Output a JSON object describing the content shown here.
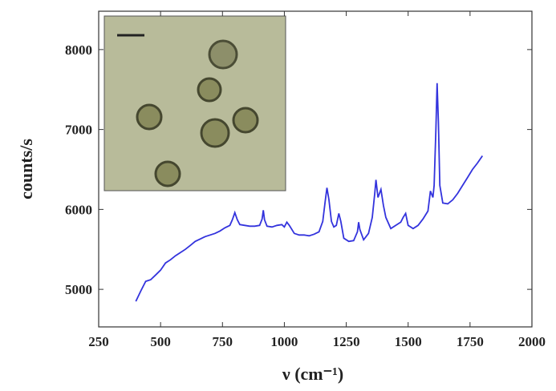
{
  "chart_data": {
    "type": "line",
    "x_label": "ν (cm⁻¹)",
    "y_label": "counts/s",
    "xlim": [
      250,
      2000
    ],
    "ylim": [
      4530,
      8480
    ],
    "xticks": [
      250,
      500,
      750,
      1000,
      1250,
      1500,
      1750,
      2000
    ],
    "yticks": [
      5000,
      6000,
      7000,
      8000
    ],
    "x": [
      400,
      420,
      440,
      460,
      480,
      500,
      520,
      540,
      560,
      580,
      600,
      620,
      640,
      660,
      680,
      700,
      720,
      740,
      760,
      780,
      790,
      800,
      810,
      820,
      840,
      860,
      880,
      900,
      910,
      915,
      920,
      930,
      950,
      970,
      990,
      1000,
      1010,
      1020,
      1040,
      1060,
      1080,
      1100,
      1120,
      1140,
      1155,
      1165,
      1172,
      1180,
      1190,
      1200,
      1210,
      1220,
      1228,
      1240,
      1260,
      1280,
      1295,
      1300,
      1305,
      1320,
      1340,
      1355,
      1365,
      1370,
      1378,
      1390,
      1400,
      1410,
      1430,
      1450,
      1470,
      1480,
      1490,
      1500,
      1520,
      1540,
      1560,
      1580,
      1590,
      1600,
      1605,
      1612,
      1617,
      1622,
      1628,
      1640,
      1660,
      1680,
      1700,
      1720,
      1740,
      1760,
      1780,
      1800
    ],
    "series": [
      {
        "color": "#3333dd",
        "values": [
          4850,
          4980,
          5100,
          5120,
          5180,
          5240,
          5330,
          5370,
          5420,
          5460,
          5500,
          5550,
          5600,
          5630,
          5660,
          5680,
          5700,
          5730,
          5770,
          5800,
          5870,
          5960,
          5870,
          5810,
          5800,
          5790,
          5790,
          5800,
          5880,
          5990,
          5870,
          5790,
          5780,
          5800,
          5810,
          5780,
          5840,
          5800,
          5700,
          5680,
          5680,
          5670,
          5690,
          5720,
          5850,
          6100,
          6270,
          6120,
          5850,
          5780,
          5800,
          5950,
          5850,
          5640,
          5600,
          5610,
          5720,
          5840,
          5750,
          5620,
          5700,
          5900,
          6200,
          6370,
          6150,
          6250,
          6050,
          5900,
          5760,
          5800,
          5840,
          5900,
          5950,
          5800,
          5760,
          5800,
          5880,
          5980,
          6230,
          6150,
          6300,
          7000,
          7580,
          7100,
          6300,
          6080,
          6070,
          6120,
          6200,
          6300,
          6400,
          6500,
          6580,
          6670
        ]
      }
    ]
  }
}
